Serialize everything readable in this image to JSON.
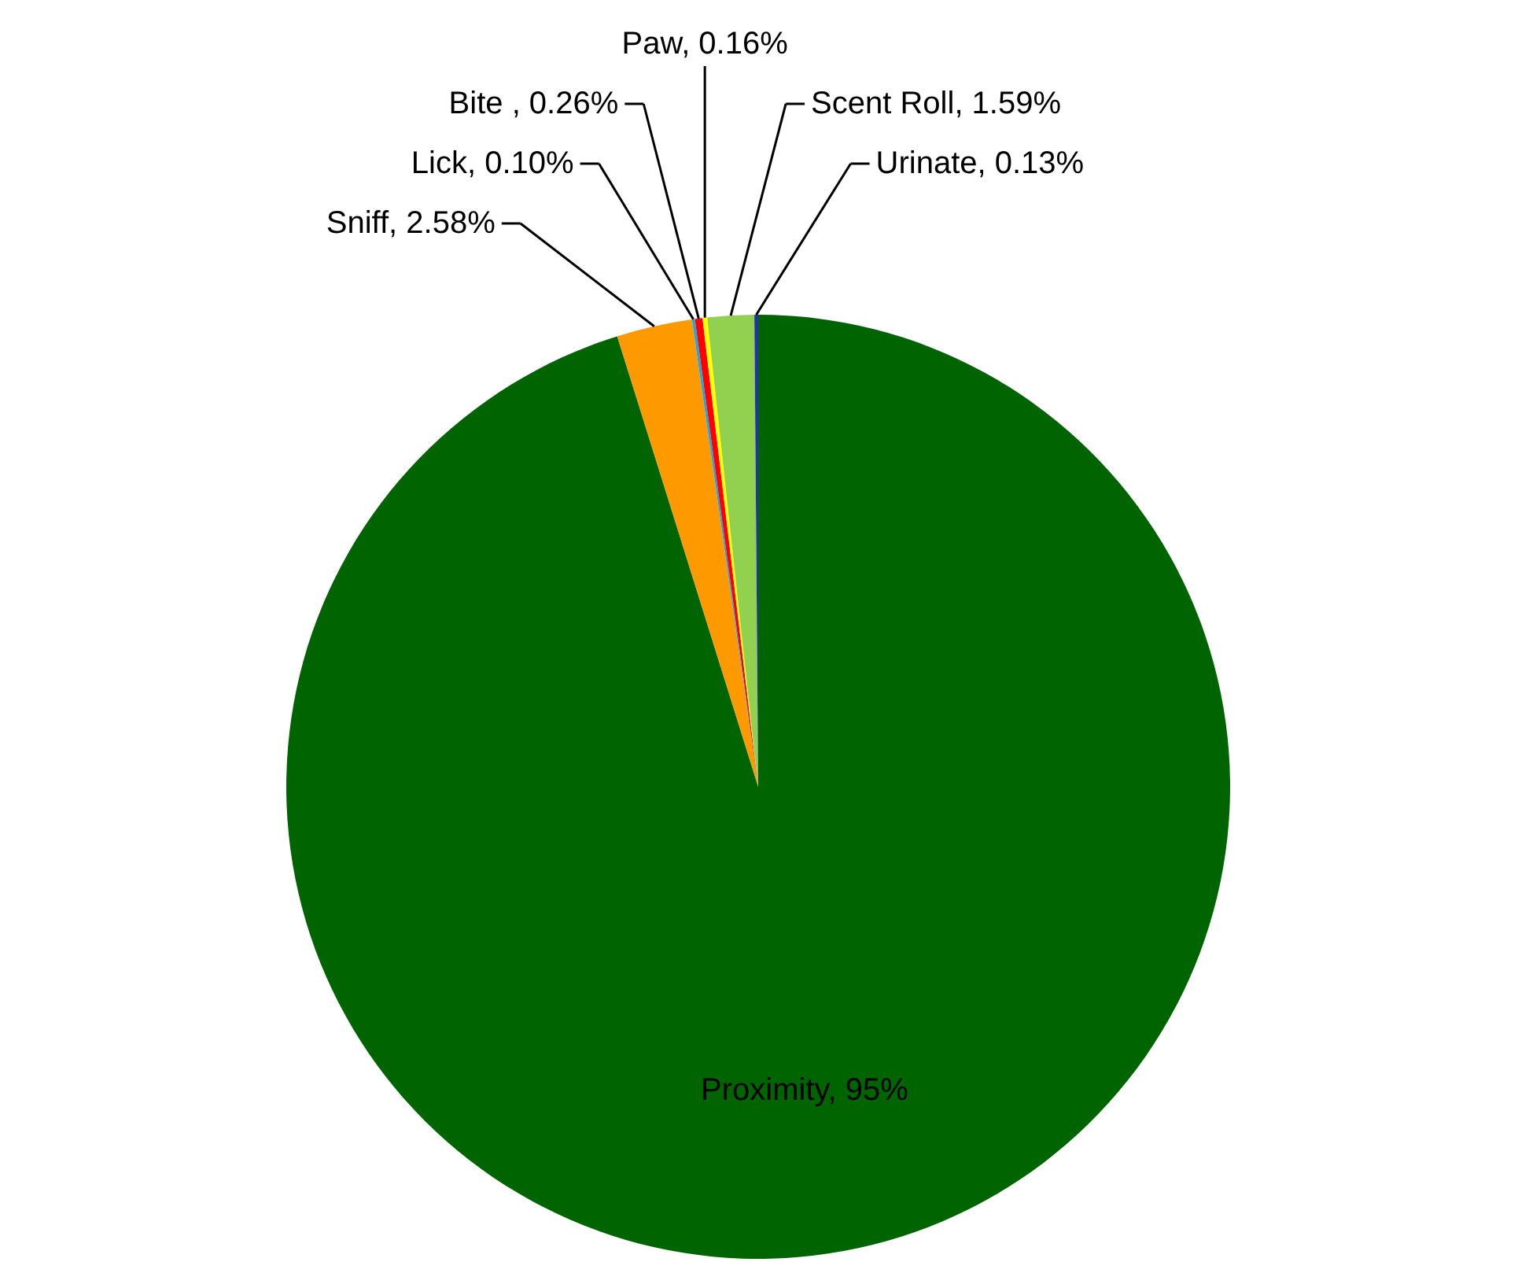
{
  "chart_data": {
    "type": "pie",
    "categories": [
      "Proximity",
      "Sniff",
      "Lick",
      "Bite ",
      "Paw",
      "Scent Roll",
      "Urinate"
    ],
    "values": [
      95,
      2.58,
      0.1,
      0.26,
      0.16,
      1.59,
      0.13
    ],
    "value_labels": [
      "95%",
      "2.58%",
      "0.10%",
      "0.26%",
      "0.16%",
      "1.59%",
      "0.13%"
    ],
    "colors": [
      "#006400",
      "#ff9900",
      "#1fa9e1",
      "#ff0000",
      "#ffff00",
      "#92d050",
      "#2233aa"
    ]
  }
}
